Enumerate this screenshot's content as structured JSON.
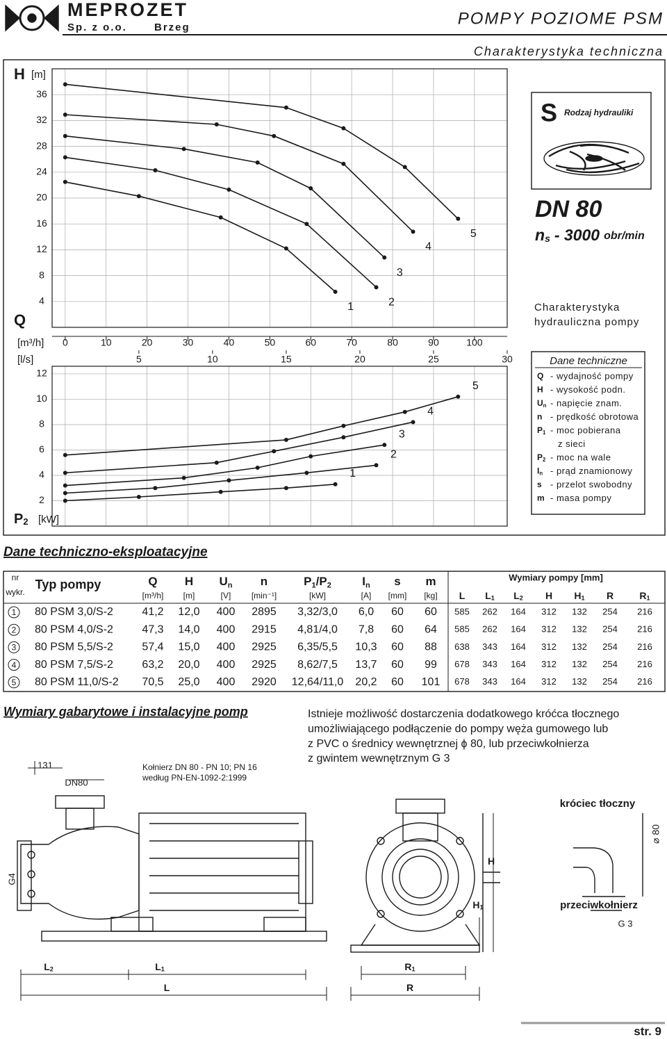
{
  "header": {
    "company": "MEPROZET",
    "company_line": "Sp. z o.o.",
    "city": "Brzeg",
    "title": "POMPY POZIOME PSM",
    "subtitle": "Charakterystyka techniczna"
  },
  "chart_data": [
    {
      "type": "line",
      "y_label": "H",
      "y_unit": "[m]",
      "x_label": "Q",
      "x_unit": "[m³/h]",
      "x2_unit": "[l/s]",
      "xlim": [
        -3.2,
        108
      ],
      "xticks": [
        0,
        10,
        20,
        30,
        40,
        50,
        60,
        70,
        80,
        90,
        100
      ],
      "x2lim": [
        -0.89,
        30
      ],
      "x2ticks": [
        5,
        10,
        15,
        20,
        25,
        30
      ],
      "ylim": [
        0,
        40
      ],
      "yticks": [
        4,
        8,
        12,
        16,
        20,
        24,
        28,
        32,
        36
      ],
      "grid": true,
      "color": "#1a1a1a",
      "series": [
        {
          "name": "1",
          "x": [
            0,
            18,
            38,
            54,
            66
          ],
          "values": [
            22.5,
            20.3,
            17,
            12.2,
            5.5
          ]
        },
        {
          "name": "2",
          "x": [
            0,
            22,
            40,
            59,
            76
          ],
          "values": [
            26.3,
            24.3,
            21.3,
            16,
            6.2
          ]
        },
        {
          "name": "3",
          "x": [
            0,
            29,
            47,
            60,
            78
          ],
          "values": [
            29.6,
            27.6,
            25.5,
            21.5,
            10.8
          ]
        },
        {
          "name": "4",
          "x": [
            0,
            37,
            51,
            68,
            85
          ],
          "values": [
            32.9,
            31.4,
            29.6,
            25.3,
            14.8
          ]
        },
        {
          "name": "5",
          "x": [
            0,
            54,
            68,
            83,
            96
          ],
          "values": [
            37.6,
            34,
            30.8,
            24.8,
            16.8
          ]
        }
      ]
    },
    {
      "type": "line",
      "y_label": "P",
      "y_sub": "2",
      "y_unit": "[kW]",
      "xlim": [
        -3.2,
        108
      ],
      "ylim": [
        0,
        12.6
      ],
      "yticks": [
        2,
        4,
        6,
        8,
        10,
        12
      ],
      "grid": true,
      "color": "#1a1a1a",
      "series": [
        {
          "name": "1",
          "x": [
            0,
            18,
            38,
            54,
            66
          ],
          "values": [
            2,
            2.3,
            2.7,
            3,
            3.3
          ]
        },
        {
          "name": "2",
          "x": [
            0,
            22,
            40,
            59,
            76
          ],
          "values": [
            2.6,
            3,
            3.6,
            4.2,
            4.8
          ]
        },
        {
          "name": "3",
          "x": [
            0,
            29,
            47,
            60,
            78
          ],
          "values": [
            3.2,
            3.8,
            4.6,
            5.5,
            6.4
          ]
        },
        {
          "name": "4",
          "x": [
            0,
            37,
            51,
            68,
            85
          ],
          "values": [
            4.2,
            5,
            5.9,
            7,
            8.2
          ]
        },
        {
          "name": "5",
          "x": [
            0,
            54,
            68,
            83,
            96
          ],
          "values": [
            5.6,
            6.8,
            7.9,
            9,
            10.2
          ]
        }
      ]
    }
  ],
  "hydraulics": {
    "symbol": "S",
    "label": "Rodzaj hydrauliki",
    "dn": "DN 80",
    "speed": {
      "symbol": "n",
      "sub": "s",
      "value": "- 3000",
      "unit": "obr/min"
    },
    "caption": [
      "Charakterystyka",
      "hydrauliczna pompy"
    ]
  },
  "legend": {
    "title": "Dane techniczne",
    "items": [
      {
        "symbol": "Q",
        "text": "- wydajność pompy"
      },
      {
        "symbol": "H",
        "text": "- wysokość podn."
      },
      {
        "symbol": "U",
        "sub": "n",
        "text": "- napięcie znam."
      },
      {
        "symbol": "n",
        "text": "- prędkość obrotowa"
      },
      {
        "symbol": "P",
        "sub": "1",
        "text": "- moc pobierana"
      },
      {
        "text": "z sieci"
      },
      {
        "symbol": "P",
        "sub": "2",
        "text": "- moc na wale"
      },
      {
        "symbol": "I",
        "sub": "n",
        "text": "- prąd znamionowy"
      },
      {
        "symbol": "s",
        "text": "- przelot swobodny"
      },
      {
        "symbol": "m",
        "text": "- masa pompy"
      }
    ]
  },
  "table": {
    "title": "Dane techniczno-eksploatacyjne",
    "nr": [
      "nr",
      "wykr."
    ],
    "type_header": "Typ pompy",
    "columns": [
      {
        "symbol": "Q",
        "unit": "[m³/h]"
      },
      {
        "symbol": "H",
        "unit": "[m]"
      },
      {
        "symbol": "U",
        "sub": "n",
        "unit": "[V]"
      },
      {
        "symbol": "n",
        "unit": "[min⁻¹]"
      },
      {
        "symbol": "P",
        "sub": "1",
        "symbol2": "/P",
        "sub2": "2",
        "unit": "[kW]"
      },
      {
        "symbol": "I",
        "sub": "n",
        "unit": "[A]"
      },
      {
        "symbol": "s",
        "unit": "[mm]"
      },
      {
        "symbol": "m",
        "unit": "[kg]"
      }
    ],
    "dims_title": "Wymiary pompy [mm]",
    "dims": [
      {
        "symbol": "L"
      },
      {
        "symbol": "L",
        "sub": "1"
      },
      {
        "symbol": "L",
        "sub": "2"
      },
      {
        "symbol": "H"
      },
      {
        "symbol": "H",
        "sub": "1"
      },
      {
        "symbol": "R"
      },
      {
        "symbol": "R",
        "sub": "1"
      }
    ],
    "rows": [
      [
        "1",
        "80 PSM 3,0/S-2",
        "41,2",
        "12,0",
        "400",
        "2895",
        "3,32/3,0",
        "6,0",
        "60",
        "60",
        "585",
        "262",
        "164",
        "312",
        "132",
        "254",
        "216"
      ],
      [
        "2",
        "80 PSM 4,0/S-2",
        "47,3",
        "14,0",
        "400",
        "2915",
        "4,81/4,0",
        "7,8",
        "60",
        "64",
        "585",
        "262",
        "164",
        "312",
        "132",
        "254",
        "216"
      ],
      [
        "3",
        "80 PSM 5,5/S-2",
        "57,4",
        "15,0",
        "400",
        "2925",
        "6,35/5,5",
        "10,3",
        "60",
        "88",
        "638",
        "343",
        "164",
        "312",
        "132",
        "254",
        "216"
      ],
      [
        "4",
        "80 PSM 7,5/S-2",
        "63,2",
        "20,0",
        "400",
        "2925",
        "8,62/7,5",
        "13,7",
        "60",
        "99",
        "678",
        "343",
        "164",
        "312",
        "132",
        "254",
        "216"
      ],
      [
        "5",
        "80 PSM 11,0/S-2",
        "70,5",
        "25,0",
        "400",
        "2920",
        "12,64/11,0",
        "20,2",
        "60",
        "101",
        "678",
        "343",
        "164",
        "312",
        "132",
        "254",
        "216"
      ]
    ]
  },
  "installation": {
    "title": "Wymiary gabarytowe i instalacyjne pomp",
    "note": [
      "Istnieje możliwość dostarczenia dodatkowego króćca tłocznego",
      "umożliwiającego podłączenie do pompy węża gumowego lub",
      "z PVC o średnicy wewnętrznej ϕ 80, lub przeciwkołnierza",
      "z gwintem wewnętrznym G 3"
    ],
    "dim_131": "131",
    "dn": "DN80",
    "flange": [
      "Kołnierz DN 80 - PN 10; PN 16",
      "według PN-EN-1092-2:1999"
    ],
    "g4": "G4",
    "dims": [
      {
        "symbol": "L",
        "sub": "2"
      },
      {
        "symbol": "L",
        "sub": "1"
      },
      {
        "symbol": "L"
      },
      {
        "symbol": "R",
        "sub": "1"
      },
      {
        "symbol": "R"
      },
      {
        "symbol": "H"
      },
      {
        "symbol": "H",
        "sub": "1"
      }
    ],
    "outlet": {
      "title": "króciec tłoczny",
      "diameter": "⌀ 80",
      "counter": "przeciwkołnierz",
      "thread": "G 3"
    }
  },
  "footer": {
    "page": "str. 9"
  }
}
